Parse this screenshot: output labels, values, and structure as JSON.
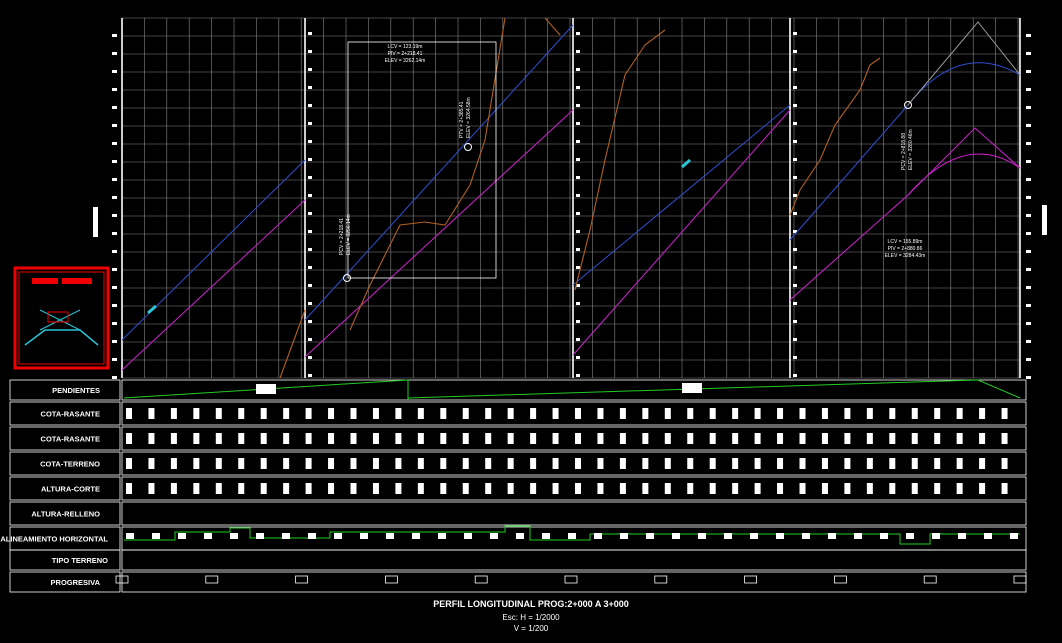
{
  "drawing": {
    "rows": [
      "PENDIENTES",
      "COTA-RASANTE",
      "COTA-RASANTE",
      "COTA-TERRENO",
      "ALTURA-CORTE",
      "ALTURA-RELLENO",
      "ALINEAMIENTO HORIZONTAL",
      "TIPO TERRENO",
      "PROGRESIVA"
    ],
    "annotations": [
      {
        "lines": [
          "LCV = 123.19m",
          "PIV = 2+218.41",
          "ELEV = 3262.14m"
        ]
      },
      {
        "lines": [
          "PCV = 2+218.41",
          "ELEV = 3256.14m"
        ]
      },
      {
        "lines": [
          "PTV = 2+385.41",
          "ELEV = 3264.58m"
        ]
      },
      {
        "lines": [
          "PCV = 2+818.88",
          "ELEV = 3280.46m"
        ]
      },
      {
        "lines": [
          "LCV = 155.89m",
          "PIV = 2+880.86",
          "ELEV = 3284.43m"
        ]
      }
    ],
    "title": "PERFIL LONGITUDINAL PROG:2+000 A 3+000",
    "scale_h": "Esc:  H = 1/2000",
    "scale_v": "V = 1/200"
  }
}
